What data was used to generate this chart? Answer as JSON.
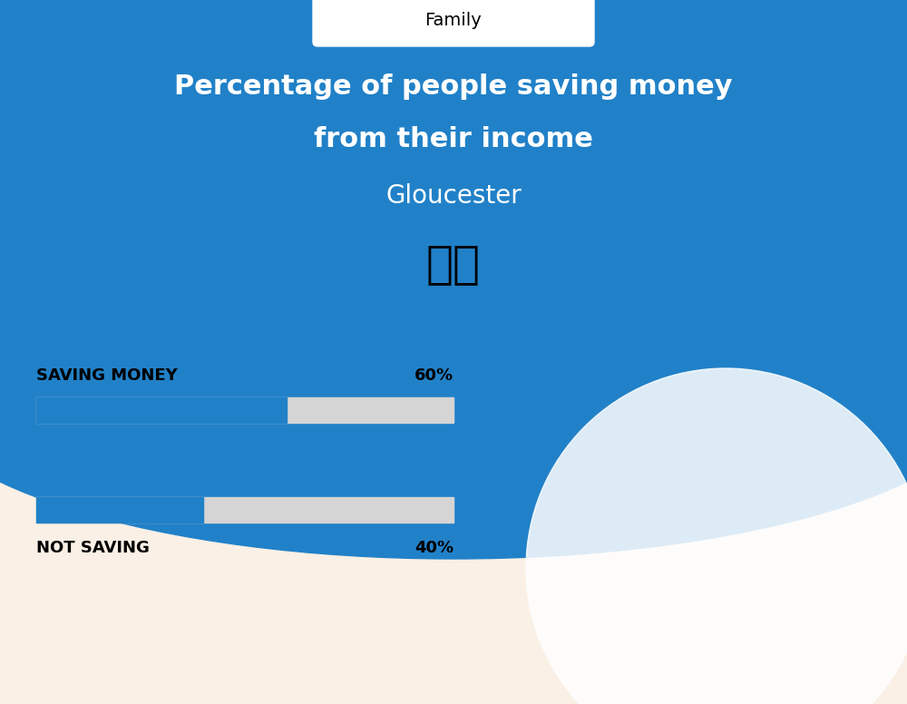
{
  "title_line1": "Percentage of people saving money",
  "title_line2": "from their income",
  "subtitle": "Gloucester",
  "category_label": "Family",
  "bar1_label": "SAVING MONEY",
  "bar1_value": 60,
  "bar1_pct": "60%",
  "bar2_label": "NOT SAVING",
  "bar2_value": 40,
  "bar2_pct": "40%",
  "blue_bg_color": "#2181C8",
  "bar_blue_color": "#2181C8",
  "bar_bg_color": "#D5D5D5",
  "body_bg_color": "#FAF0E6",
  "title_color": "#FFFFFF",
  "subtitle_color": "#FFFFFF",
  "label_color": "#000000",
  "category_box_color": "#FFFFFF",
  "flag_emoji": "🇬🇧"
}
